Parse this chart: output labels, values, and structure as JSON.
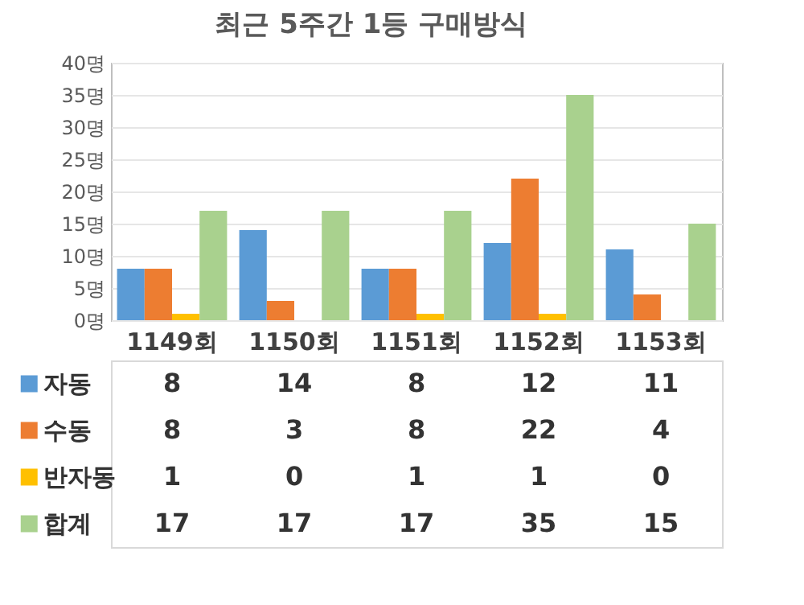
{
  "chart_data": {
    "type": "bar",
    "title": "최근 5주간 1등 구매방식",
    "categories": [
      "1149회",
      "1150회",
      "1151회",
      "1152회",
      "1153회"
    ],
    "series": [
      {
        "name": "자동",
        "color": "#5b9bd5",
        "values": [
          8,
          14,
          8,
          12,
          11
        ]
      },
      {
        "name": "수동",
        "color": "#ed7d31",
        "values": [
          8,
          3,
          8,
          22,
          4
        ]
      },
      {
        "name": "반자동",
        "color": "#ffc000",
        "values": [
          1,
          0,
          1,
          1,
          0
        ]
      },
      {
        "name": "합계",
        "color": "#a9d18e",
        "values": [
          17,
          17,
          17,
          35,
          15
        ]
      }
    ],
    "ylim": [
      0,
      40
    ],
    "yticks": [
      {
        "value": 0,
        "label": "0명"
      },
      {
        "value": 5,
        "label": "5명"
      },
      {
        "value": 10,
        "label": "10명"
      },
      {
        "value": 15,
        "label": "15명"
      },
      {
        "value": 20,
        "label": "20명"
      },
      {
        "value": 25,
        "label": "25명"
      },
      {
        "value": 30,
        "label": "30명"
      },
      {
        "value": 35,
        "label": "35명"
      },
      {
        "value": 40,
        "label": "40명"
      }
    ],
    "grid": "y",
    "legend": "bottom",
    "data_labels": true
  }
}
